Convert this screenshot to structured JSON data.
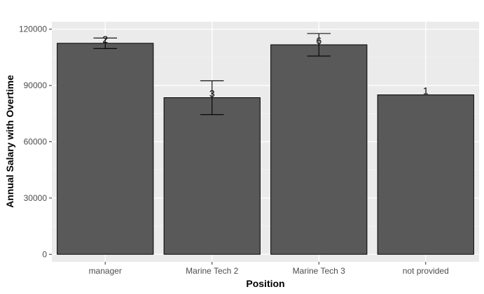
{
  "chart_data": {
    "type": "bar",
    "categories": [
      "manager",
      "Marine Tech 2",
      "Marine Tech 3",
      "not provided"
    ],
    "values": [
      112500,
      83500,
      111700,
      85000
    ],
    "error_bars": [
      {
        "low": 109700,
        "high": 115300
      },
      {
        "low": 74500,
        "high": 92500
      },
      {
        "low": 105700,
        "high": 117700
      },
      null
    ],
    "data_labels": [
      "2",
      "3",
      "6",
      "1"
    ],
    "xlabel": "Position",
    "ylabel": "Annual Salary with Overtime",
    "ylim": [
      -4000,
      124000
    ],
    "yticks": [
      0,
      30000,
      60000,
      90000,
      120000
    ],
    "ytick_labels": [
      "0",
      "30000",
      "60000",
      "90000",
      "120000"
    ],
    "grid": true,
    "colors": {
      "panel_background": "#ebebeb",
      "grid_major": "#ffffff",
      "grid_minor": "#f5f5f5",
      "bar_fill": "#595959",
      "bar_outline": "#000000",
      "error_bar": "#000000"
    }
  }
}
